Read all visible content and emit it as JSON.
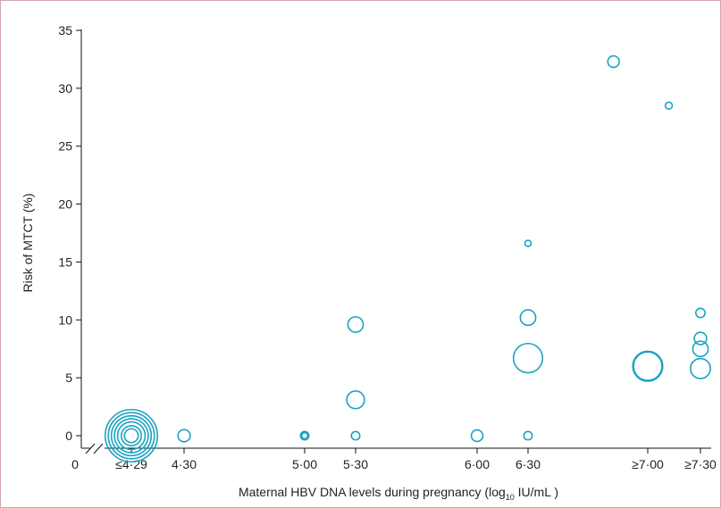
{
  "chart_data": {
    "type": "scatter",
    "title": "",
    "xlabel": "Maternal HBV DNA levels during pregnancy (log",
    "xlabel_sub": "10",
    "xlabel_end": " IU/mL )",
    "ylabel": "Risk of MTCT (%)",
    "ylim": [
      0,
      35
    ],
    "yticks": [
      "0",
      "5",
      "10",
      "15",
      "20",
      "25",
      "30",
      "35"
    ],
    "xticks": [
      {
        "label": "0",
        "value": 0
      },
      {
        "label": "≤4·29",
        "value": 4.29
      },
      {
        "label": "4·30",
        "value": 4.3
      },
      {
        "label": "5·00",
        "value": 5.0
      },
      {
        "label": "5·30",
        "value": 5.3
      },
      {
        "label": "6·00",
        "value": 6.0
      },
      {
        "label": "6·30",
        "value": 6.3
      },
      {
        "label": "≥7·00",
        "value": 7.0
      },
      {
        "label": "≥7·30",
        "value": 7.3
      }
    ],
    "axis_break": true,
    "grid": false,
    "color": "#1aa3c2",
    "points": [
      {
        "x": 4.29,
        "y": 0,
        "size": 3.4
      },
      {
        "x": 4.29,
        "y": 0,
        "size": 3.0
      },
      {
        "x": 4.29,
        "y": 0,
        "size": 2.6
      },
      {
        "x": 4.29,
        "y": 0,
        "size": 2.2
      },
      {
        "x": 4.29,
        "y": 0,
        "size": 1.8
      },
      {
        "x": 4.29,
        "y": 0,
        "size": 1.3
      },
      {
        "x": 4.29,
        "y": 0,
        "size": 0.9
      },
      {
        "x": 4.3,
        "y": 0,
        "size": 0.8
      },
      {
        "x": 5.0,
        "y": 0,
        "size": 0.55
      },
      {
        "x": 5.0,
        "y": 0,
        "size": 0.4
      },
      {
        "x": 5.3,
        "y": 9.6,
        "size": 1.0
      },
      {
        "x": 5.3,
        "y": 3.1,
        "size": 1.15
      },
      {
        "x": 5.3,
        "y": 0,
        "size": 0.55
      },
      {
        "x": 6.0,
        "y": 0,
        "size": 0.75
      },
      {
        "x": 6.3,
        "y": 16.6,
        "size": 0.4
      },
      {
        "x": 6.3,
        "y": 10.2,
        "size": 1.0
      },
      {
        "x": 6.3,
        "y": 6.7,
        "size": 1.9
      },
      {
        "x": 6.3,
        "y": 0,
        "size": 0.55
      },
      {
        "x": 6.8,
        "y": 32.3,
        "size": 0.75
      },
      {
        "x": 7.0,
        "y": 6.0,
        "size": 1.95
      },
      {
        "x": 7.0,
        "y": 6.0,
        "size": 1.85
      },
      {
        "x": 7.12,
        "y": 28.5,
        "size": 0.45
      },
      {
        "x": 7.3,
        "y": 10.6,
        "size": 0.6
      },
      {
        "x": 7.3,
        "y": 8.4,
        "size": 0.8
      },
      {
        "x": 7.3,
        "y": 7.5,
        "size": 1.0
      },
      {
        "x": 7.3,
        "y": 5.8,
        "size": 1.3
      }
    ]
  }
}
